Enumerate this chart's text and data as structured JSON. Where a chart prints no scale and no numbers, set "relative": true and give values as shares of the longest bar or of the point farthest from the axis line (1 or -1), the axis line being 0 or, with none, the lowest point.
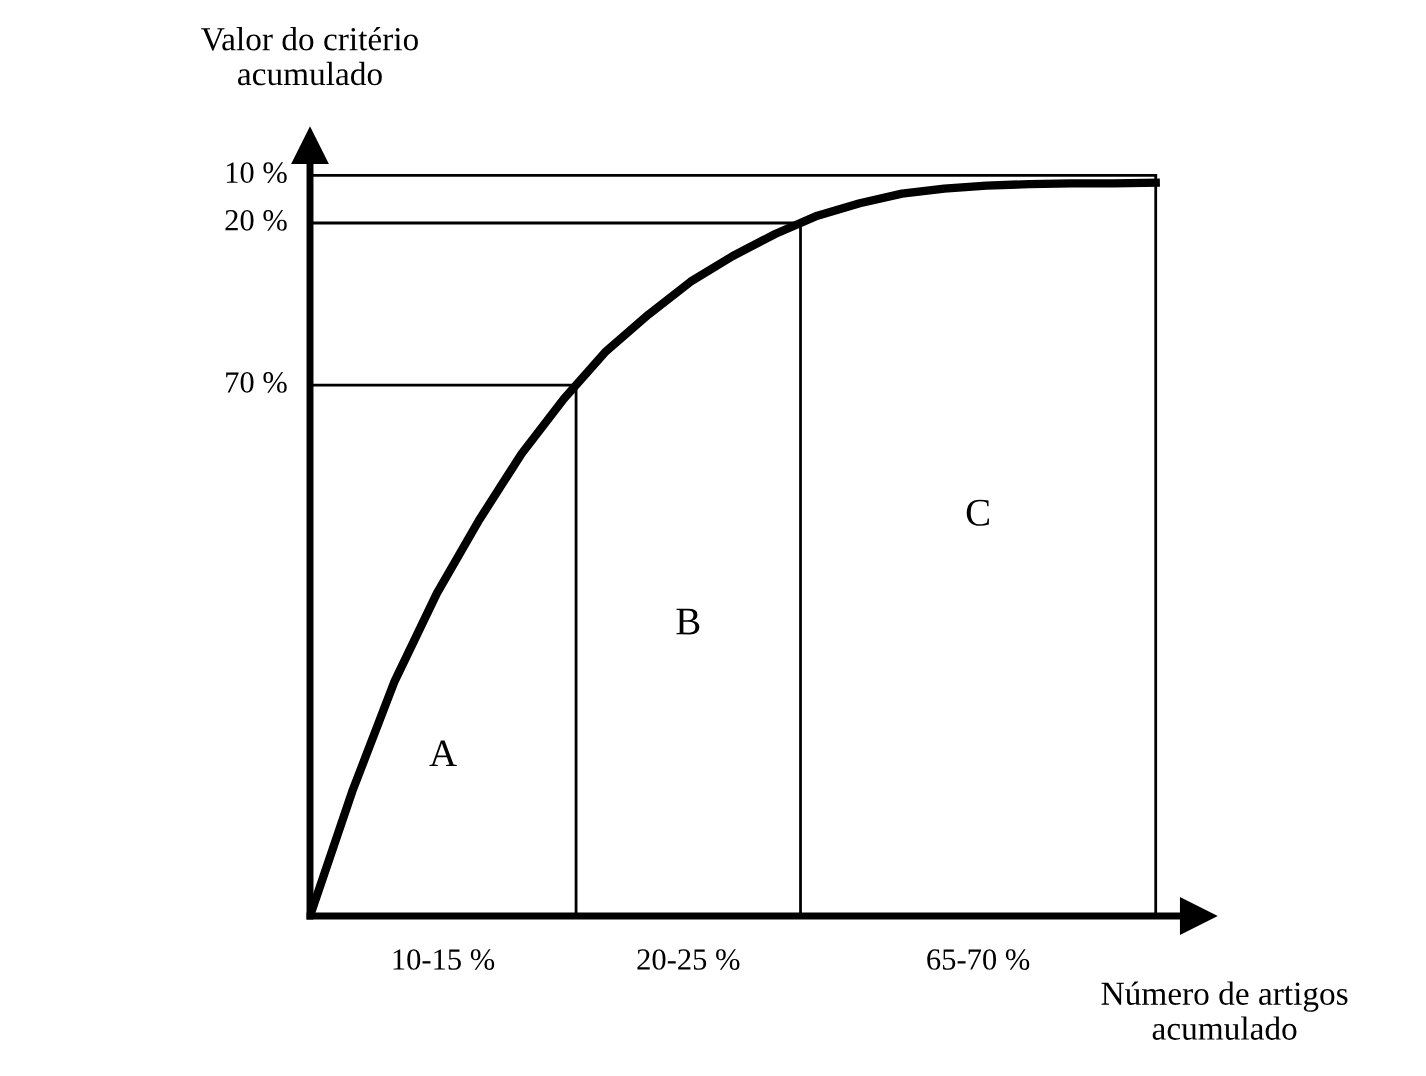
{
  "chart_data": {
    "type": "line",
    "relative": true,
    "xlabel": "Número de artigos\nacumulado",
    "ylabel": "Valor do critério\nacumulado",
    "categories": [
      null,
      null,
      null,
      null,
      null,
      null,
      null,
      null,
      null,
      null,
      null,
      null,
      null,
      null,
      null,
      null,
      null,
      null,
      null,
      null,
      null
    ],
    "series": [
      {
        "color": "#000000",
        "values": [
          0,
          0.17,
          0.32,
          0.44,
          0.54,
          0.63,
          0.705,
          0.77,
          0.82,
          0.865,
          0.9,
          0.93,
          0.955,
          0.972,
          0.985,
          0.992,
          0.996,
          0.998,
          0.999,
          0.999,
          1.0
        ]
      }
    ],
    "ref_lines": [
      {
        "axis": "y",
        "value": 0.724
      },
      {
        "axis": "y",
        "value": 0.945
      },
      {
        "axis": "y",
        "value": 1.01
      }
    ],
    "annotations": [
      "70 %",
      "20 %",
      "10 %",
      "A",
      "B",
      "C",
      "10-15 %",
      "20-25 %",
      "65-70 %"
    ],
    "line_style": "solid",
    "marker": "none",
    "legend": false
  }
}
